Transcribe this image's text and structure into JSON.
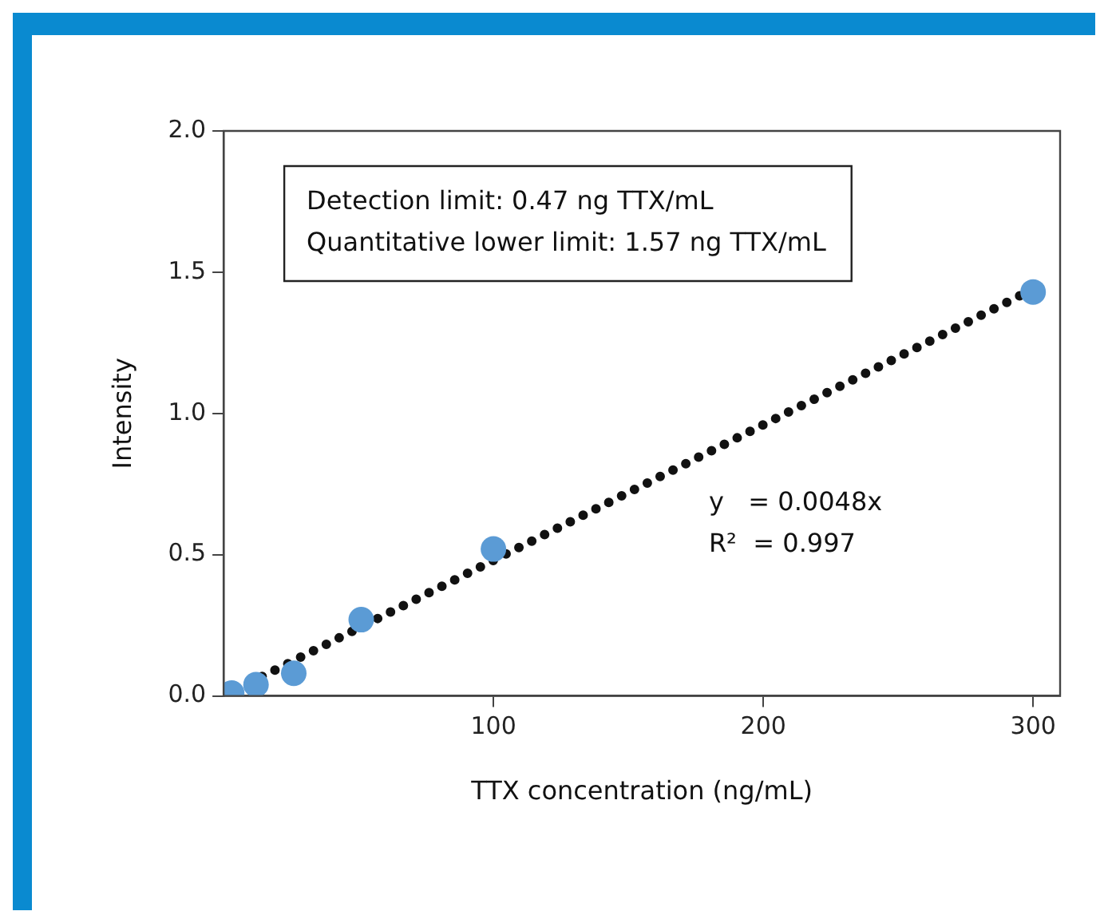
{
  "chart_data": {
    "type": "scatter",
    "xlabel": "TTX concentration (ng/mL)",
    "ylabel": "Intensity",
    "xlim": [
      0,
      310
    ],
    "xticks": [
      100,
      200,
      300
    ],
    "ylim": [
      0,
      2
    ],
    "yticks": [
      {
        "value": 0,
        "label": "0.0"
      },
      {
        "value": 0.5,
        "label": "0.5"
      },
      {
        "value": 1,
        "label": "1.0"
      },
      {
        "value": 1.5,
        "label": "1.5"
      },
      {
        "value": 2,
        "label": "2.0"
      }
    ],
    "grid": false,
    "legend": false,
    "series": [
      {
        "type": "scatter",
        "marker": "circle",
        "color": "#5b9bd5",
        "x": [
          3,
          12,
          26,
          51,
          100,
          300
        ],
        "values": [
          0.01,
          0.04,
          0.08,
          0.27,
          0.52,
          1.43
        ]
      },
      {
        "type": "line",
        "color": "#111111",
        "line_style": "dotted",
        "x": [
          0,
          300
        ],
        "values": [
          0,
          1.44
        ]
      }
    ],
    "annotations": [
      "Detection limit: 0.47 ng TTX/mL",
      "Quantitative lower limit: 1.57 ng TTX/mL",
      "y   = 0.0048x",
      "R²  = 0.997"
    ]
  }
}
